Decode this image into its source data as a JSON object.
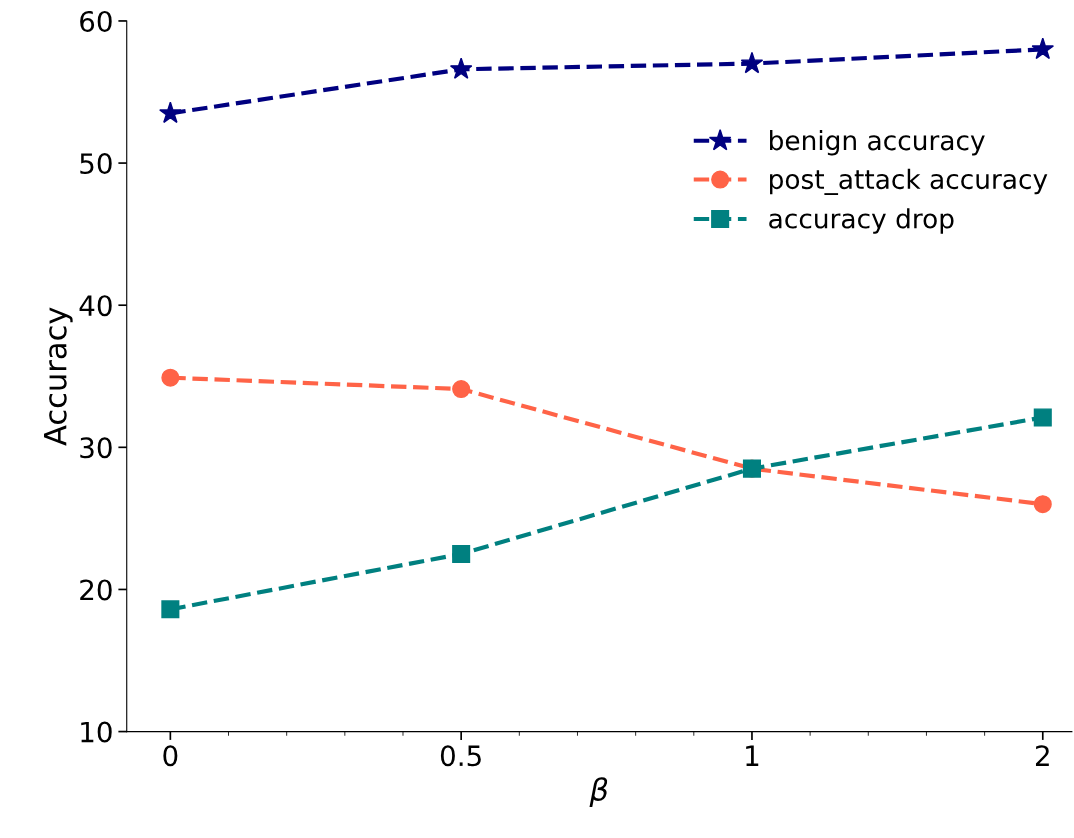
{
  "chart_data": {
    "type": "line",
    "xlabel": "β",
    "ylabel": "Accuracy",
    "categories": [
      "0",
      "0.5",
      "1",
      "2"
    ],
    "ylim": [
      10,
      60
    ],
    "yticks": [
      10,
      20,
      30,
      40,
      50,
      60
    ],
    "line_style": "dashed",
    "grid": false,
    "legend": "upper right",
    "series": [
      {
        "name": "benign accuracy",
        "color": "#000080",
        "marker": "star",
        "values": [
          53.5,
          56.6,
          57.0,
          58.0
        ]
      },
      {
        "name": "post_attack accuracy",
        "color": "#ff6347",
        "marker": "circle",
        "values": [
          34.9,
          34.1,
          28.5,
          26.0
        ]
      },
      {
        "name": "accuracy drop",
        "color": "#008080",
        "marker": "square",
        "values": [
          18.6,
          22.5,
          28.5,
          32.1
        ]
      }
    ]
  }
}
